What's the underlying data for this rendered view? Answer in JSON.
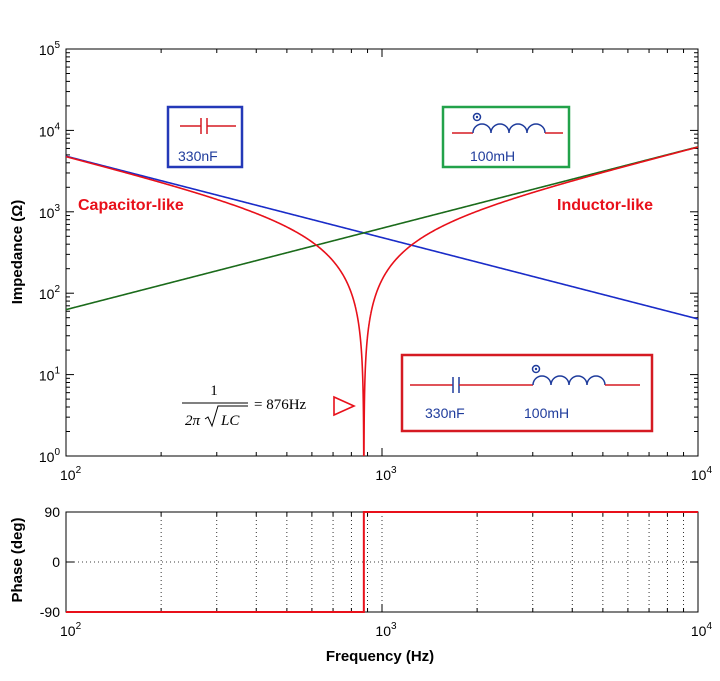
{
  "chart_data": [
    {
      "type": "line",
      "ylabel": "Impedance (Ω)",
      "xscale": "log",
      "yscale": "log",
      "xlim": [
        100,
        10000
      ],
      "ylim": [
        1,
        100000
      ],
      "grid": false,
      "x_ticks": [
        {
          "base": "10",
          "exp": "2"
        },
        {
          "base": "10",
          "exp": "3"
        },
        {
          "base": "10",
          "exp": "4"
        }
      ],
      "y_ticks": [
        {
          "base": "10",
          "exp": "0"
        },
        {
          "base": "10",
          "exp": "1"
        },
        {
          "base": "10",
          "exp": "2"
        },
        {
          "base": "10",
          "exp": "3"
        },
        {
          "base": "10",
          "exp": "4"
        },
        {
          "base": "10",
          "exp": "5"
        }
      ],
      "capacitance_F": 3.3e-07,
      "inductance_H": 0.1,
      "series": [
        {
          "key": "capacitor",
          "color": "#1a2cc8",
          "x": [
            100,
            200,
            500,
            876,
            1000,
            2000,
            5000,
            10000
          ],
          "y": [
            4823,
            2411,
            965,
            551,
            482,
            241,
            96.5,
            48.2
          ]
        },
        {
          "key": "inductor",
          "color": "#1b6b1b",
          "x": [
            100,
            200,
            500,
            876,
            1000,
            2000,
            5000,
            10000
          ],
          "y": [
            62.8,
            126,
            314,
            550,
            628,
            1257,
            3142,
            6283
          ]
        },
        {
          "key": "series-lc",
          "color": "#e8101a",
          "x": [
            100,
            200,
            500,
            800,
            876,
            950,
            1200,
            2000,
            5000,
            10000
          ],
          "y": [
            4760,
            2285,
            651,
            98,
            1,
            92,
            464,
            1016,
            3045,
            6235
          ]
        }
      ],
      "annotations": {
        "left": "Capacitor-like",
        "right": "Inductor-like",
        "formula_numerator": "1",
        "formula_denominator_prefix": "2π",
        "formula_denominator_radicand": "LC",
        "formula_result": "= 876Hz",
        "resonance_hz": 876
      },
      "boxes": {
        "capacitor": {
          "label": "330nF",
          "color": "#2439b8"
        },
        "inductor": {
          "label": "100mH",
          "color": "#22a24a"
        },
        "series": {
          "cap_label": "330nF",
          "ind_label": "100mH",
          "color": "#d51a22"
        }
      }
    },
    {
      "type": "line",
      "xlabel": "Frequency (Hz)",
      "ylabel": "Phase (deg)",
      "xscale": "log",
      "xlim": [
        100,
        10000
      ],
      "ylim": [
        -90,
        90
      ],
      "grid": true,
      "x_ticks": [
        {
          "base": "10",
          "exp": "2"
        },
        {
          "base": "10",
          "exp": "3"
        },
        {
          "base": "10",
          "exp": "4"
        }
      ],
      "y_ticks": [
        "90",
        "0",
        "-90"
      ],
      "series": [
        {
          "key": "phase",
          "color": "#e8101a",
          "x": [
            100,
            876,
            876,
            10000
          ],
          "y": [
            -90,
            -90,
            90,
            90
          ]
        }
      ]
    }
  ]
}
